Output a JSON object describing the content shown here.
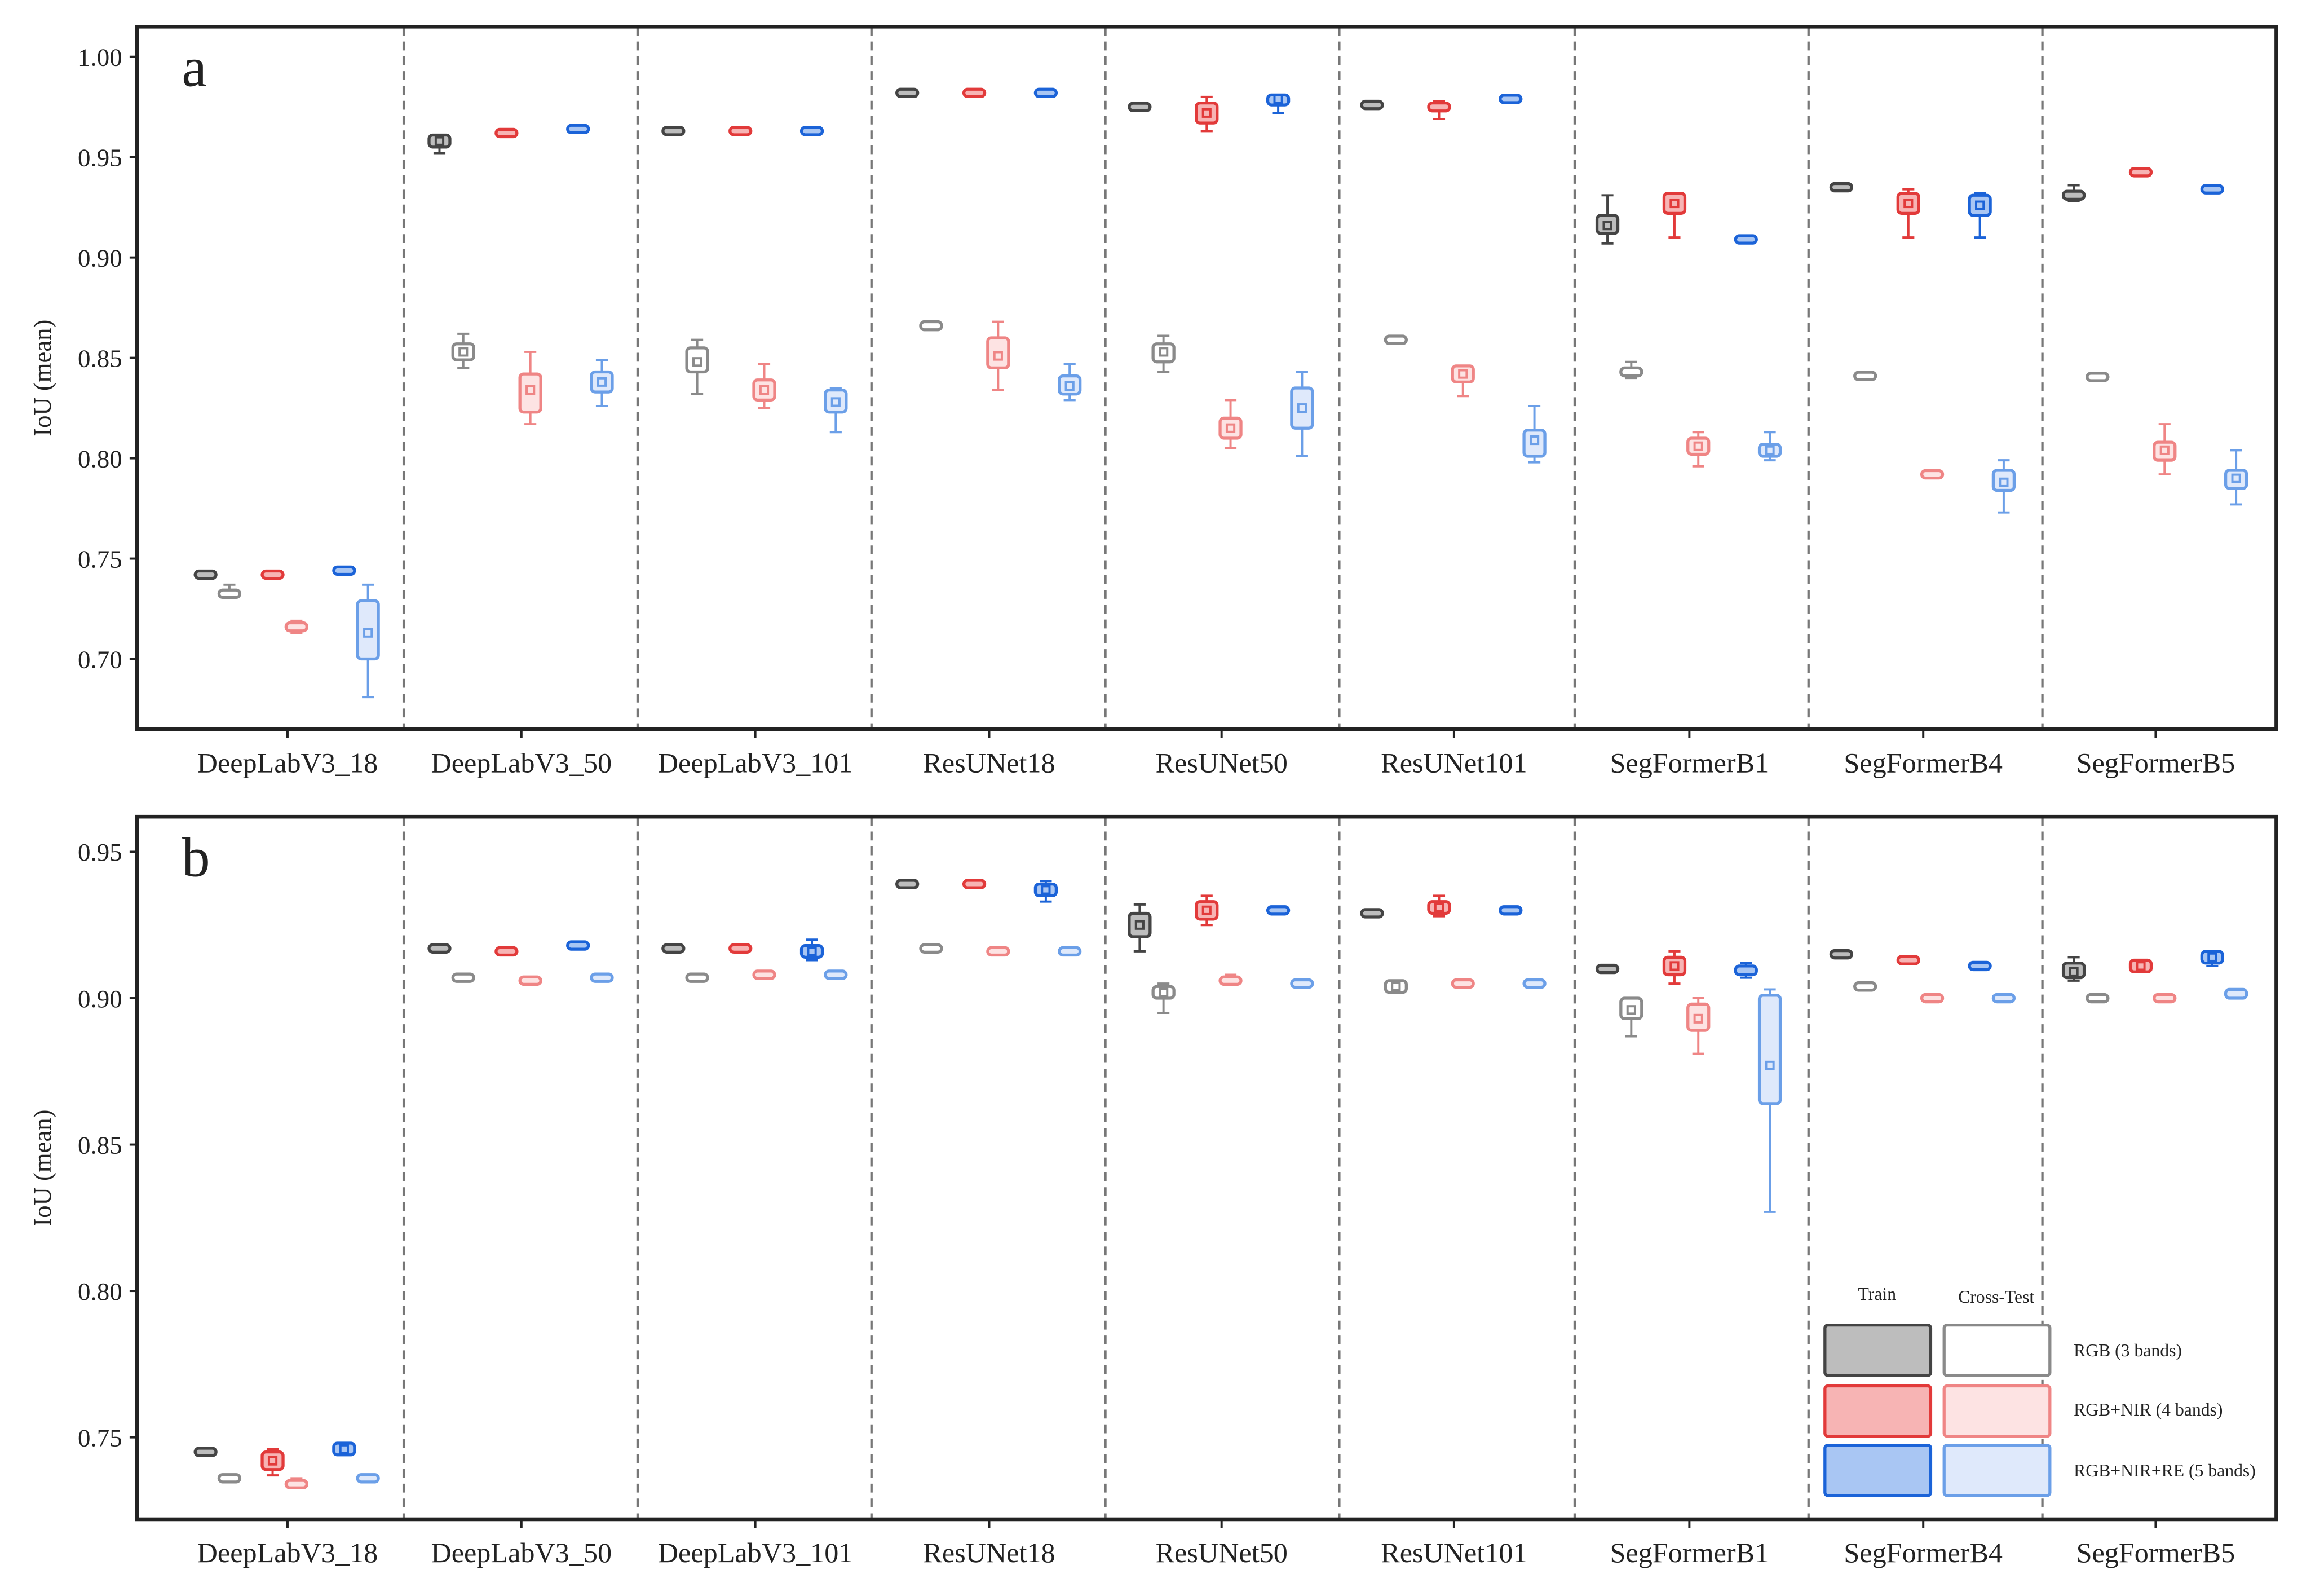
{
  "chart_data": {
    "type": "box",
    "ylabel": "IoU (mean)",
    "categories": [
      "DeepLabV3_18",
      "DeepLabV3_50",
      "DeepLabV3_101",
      "ResUNet18",
      "ResUNet50",
      "ResUNet101",
      "SegFormerB1",
      "SegFormerB4",
      "SegFormerB5"
    ],
    "series": [
      {
        "name": "RGB (3 bands) Train",
        "color": "#444444",
        "fill": "#bdbdbd"
      },
      {
        "name": "RGB (3 bands) Cross-Test",
        "color": "#8a8a8a",
        "fill": "#ffffff"
      },
      {
        "name": "RGB+NIR (4 bands) Train",
        "color": "#e23a3a",
        "fill": "#f7b4b4"
      },
      {
        "name": "RGB+NIR (4 bands) Cross-Test",
        "color": "#ef8585",
        "fill": "#fde3e3"
      },
      {
        "name": "RGB+NIR+RE (5 bands) Train",
        "color": "#1b63d8",
        "fill": "#a9c6f3"
      },
      {
        "name": "RGB+NIR+RE (5 bands) Cross-Test",
        "color": "#6b9fe8",
        "fill": "#dfe9fb"
      }
    ],
    "box_format": [
      "whisker_low",
      "q1",
      "q3",
      "whisker_high",
      "mean"
    ],
    "panels": [
      {
        "label": "a",
        "ylim": [
          0.665,
          1.015
        ],
        "yticks": [
          "0.70",
          "0.75",
          "0.80",
          "0.85",
          "0.90",
          "0.95",
          "1.00"
        ],
        "boxes": [
          [
            [
              0.74,
              0.741,
              0.743,
              0.743,
              0.742
            ],
            [
              0.731,
              0.731,
              0.734,
              0.737,
              0.733
            ],
            [
              0.74,
              0.741,
              0.743,
              0.743,
              0.742
            ],
            [
              0.713,
              0.714,
              0.718,
              0.719,
              0.716
            ],
            [
              0.742,
              0.743,
              0.745,
              0.745,
              0.744
            ],
            [
              0.681,
              0.7,
              0.729,
              0.737,
              0.713
            ]
          ],
          [
            [
              0.952,
              0.955,
              0.961,
              0.961,
              0.958
            ],
            [
              0.845,
              0.849,
              0.857,
              0.862,
              0.853
            ],
            [
              0.961,
              0.961,
              0.963,
              0.963,
              0.962
            ],
            [
              0.817,
              0.823,
              0.842,
              0.853,
              0.834
            ],
            [
              0.963,
              0.963,
              0.965,
              0.965,
              0.964
            ],
            [
              0.826,
              0.833,
              0.843,
              0.849,
              0.838
            ]
          ],
          [
            [
              0.962,
              0.962,
              0.964,
              0.964,
              0.963
            ],
            [
              0.832,
              0.843,
              0.855,
              0.859,
              0.848
            ],
            [
              0.962,
              0.962,
              0.964,
              0.964,
              0.963
            ],
            [
              0.825,
              0.829,
              0.839,
              0.847,
              0.834
            ],
            [
              0.962,
              0.962,
              0.964,
              0.964,
              0.963
            ],
            [
              0.813,
              0.823,
              0.834,
              0.835,
              0.828
            ]
          ],
          [
            [
              0.981,
              0.981,
              0.983,
              0.983,
              0.982
            ],
            [
              0.864,
              0.864,
              0.868,
              0.868,
              0.866
            ],
            [
              0.981,
              0.981,
              0.983,
              0.983,
              0.982
            ],
            [
              0.834,
              0.845,
              0.86,
              0.868,
              0.851
            ],
            [
              0.981,
              0.981,
              0.983,
              0.983,
              0.982
            ],
            [
              0.829,
              0.832,
              0.841,
              0.847,
              0.836
            ]
          ],
          [
            [
              0.974,
              0.974,
              0.976,
              0.976,
              0.975
            ],
            [
              0.843,
              0.848,
              0.857,
              0.861,
              0.853
            ],
            [
              0.963,
              0.967,
              0.977,
              0.98,
              0.972
            ],
            [
              0.805,
              0.81,
              0.82,
              0.829,
              0.815
            ],
            [
              0.972,
              0.976,
              0.981,
              0.981,
              0.979
            ],
            [
              0.801,
              0.815,
              0.835,
              0.843,
              0.825
            ]
          ],
          [
            [
              0.975,
              0.975,
              0.977,
              0.977,
              0.976
            ],
            [
              0.858,
              0.858,
              0.86,
              0.86,
              0.859
            ],
            [
              0.969,
              0.973,
              0.977,
              0.978,
              0.975
            ],
            [
              0.831,
              0.838,
              0.846,
              0.846,
              0.842
            ],
            [
              0.978,
              0.978,
              0.98,
              0.98,
              0.979
            ],
            [
              0.798,
              0.801,
              0.814,
              0.826,
              0.809
            ]
          ],
          [
            [
              0.907,
              0.912,
              0.921,
              0.931,
              0.916
            ],
            [
              0.84,
              0.841,
              0.845,
              0.848,
              0.843
            ],
            [
              0.91,
              0.922,
              0.932,
              0.932,
              0.927
            ],
            [
              0.796,
              0.802,
              0.81,
              0.813,
              0.806
            ],
            [
              0.908,
              0.908,
              0.91,
              0.91,
              0.909
            ],
            [
              0.799,
              0.801,
              0.807,
              0.813,
              0.804
            ]
          ],
          [
            [
              0.934,
              0.934,
              0.936,
              0.936,
              0.935
            ],
            [
              0.84,
              0.84,
              0.842,
              0.842,
              0.841
            ],
            [
              0.91,
              0.922,
              0.932,
              0.934,
              0.927
            ],
            [
              0.791,
              0.791,
              0.793,
              0.793,
              0.792
            ],
            [
              0.91,
              0.921,
              0.931,
              0.932,
              0.926
            ],
            [
              0.773,
              0.784,
              0.794,
              0.799,
              0.788
            ]
          ],
          [
            [
              0.928,
              0.929,
              0.933,
              0.936,
              0.931
            ],
            [
              0.839,
              0.839,
              0.842,
              0.842,
              0.84
            ],
            [
              0.941,
              0.941,
              0.944,
              0.944,
              0.942
            ],
            [
              0.792,
              0.799,
              0.808,
              0.817,
              0.804
            ],
            [
              0.933,
              0.933,
              0.935,
              0.935,
              0.934
            ],
            [
              0.777,
              0.785,
              0.794,
              0.804,
              0.79
            ]
          ]
        ]
      },
      {
        "label": "b",
        "ylim": [
          0.722,
          0.962
        ],
        "yticks": [
          "0.75",
          "0.80",
          "0.85",
          "0.90",
          "0.95"
        ],
        "boxes": [
          [
            [
              0.744,
              0.744,
              0.746,
              0.746,
              0.745
            ],
            [
              0.735,
              0.735,
              0.737,
              0.737,
              0.736
            ],
            [
              0.737,
              0.739,
              0.745,
              0.746,
              0.742
            ],
            [
              0.733,
              0.733,
              0.735,
              0.736,
              0.734
            ],
            [
              0.744,
              0.744,
              0.748,
              0.748,
              0.746
            ],
            [
              0.735,
              0.735,
              0.737,
              0.737,
              0.736
            ]
          ],
          [
            [
              0.916,
              0.916,
              0.918,
              0.918,
              0.917
            ],
            [
              0.906,
              0.906,
              0.908,
              0.908,
              0.907
            ],
            [
              0.915,
              0.915,
              0.917,
              0.917,
              0.916
            ],
            [
              0.905,
              0.905,
              0.907,
              0.907,
              0.906
            ],
            [
              0.917,
              0.917,
              0.919,
              0.919,
              0.918
            ],
            [
              0.906,
              0.906,
              0.908,
              0.908,
              0.907
            ]
          ],
          [
            [
              0.916,
              0.916,
              0.918,
              0.918,
              0.917
            ],
            [
              0.906,
              0.906,
              0.908,
              0.908,
              0.907
            ],
            [
              0.916,
              0.916,
              0.918,
              0.918,
              0.917
            ],
            [
              0.907,
              0.907,
              0.909,
              0.909,
              0.908
            ],
            [
              0.913,
              0.914,
              0.918,
              0.92,
              0.916
            ],
            [
              0.907,
              0.907,
              0.909,
              0.909,
              0.908
            ]
          ],
          [
            [
              0.938,
              0.938,
              0.94,
              0.94,
              0.939
            ],
            [
              0.916,
              0.916,
              0.918,
              0.918,
              0.917
            ],
            [
              0.938,
              0.938,
              0.94,
              0.94,
              0.939
            ],
            [
              0.915,
              0.915,
              0.917,
              0.917,
              0.916
            ],
            [
              0.933,
              0.935,
              0.939,
              0.94,
              0.937
            ],
            [
              0.915,
              0.915,
              0.917,
              0.917,
              0.916
            ]
          ],
          [
            [
              0.916,
              0.921,
              0.929,
              0.932,
              0.925
            ],
            [
              0.895,
              0.9,
              0.904,
              0.905,
              0.902
            ],
            [
              0.925,
              0.927,
              0.933,
              0.935,
              0.93
            ],
            [
              0.905,
              0.905,
              0.907,
              0.908,
              0.906
            ],
            [
              0.929,
              0.929,
              0.931,
              0.931,
              0.93
            ],
            [
              0.904,
              0.904,
              0.906,
              0.906,
              0.905
            ]
          ],
          [
            [
              0.928,
              0.928,
              0.93,
              0.93,
              0.929
            ],
            [
              0.902,
              0.902,
              0.906,
              0.906,
              0.904
            ],
            [
              0.928,
              0.929,
              0.933,
              0.935,
              0.931
            ],
            [
              0.904,
              0.904,
              0.906,
              0.906,
              0.905
            ],
            [
              0.929,
              0.929,
              0.931,
              0.931,
              0.93
            ],
            [
              0.904,
              0.904,
              0.906,
              0.906,
              0.905
            ]
          ],
          [
            [
              0.909,
              0.909,
              0.911,
              0.911,
              0.91
            ],
            [
              0.887,
              0.893,
              0.9,
              0.9,
              0.896
            ],
            [
              0.905,
              0.908,
              0.914,
              0.916,
              0.911
            ],
            [
              0.881,
              0.889,
              0.898,
              0.9,
              0.893
            ],
            [
              0.907,
              0.908,
              0.911,
              0.912,
              0.909
            ],
            [
              0.827,
              0.864,
              0.901,
              0.903,
              0.877
            ]
          ],
          [
            [
              0.914,
              0.914,
              0.916,
              0.916,
              0.915
            ],
            [
              0.903,
              0.903,
              0.905,
              0.905,
              0.904
            ],
            [
              0.912,
              0.912,
              0.914,
              0.914,
              0.913
            ],
            [
              0.899,
              0.899,
              0.901,
              0.901,
              0.9
            ],
            [
              0.91,
              0.91,
              0.912,
              0.912,
              0.911
            ],
            [
              0.899,
              0.899,
              0.901,
              0.901,
              0.9
            ]
          ],
          [
            [
              0.906,
              0.907,
              0.912,
              0.914,
              0.909
            ],
            [
              0.899,
              0.899,
              0.901,
              0.901,
              0.9
            ],
            [
              0.909,
              0.909,
              0.913,
              0.913,
              0.911
            ],
            [
              0.899,
              0.899,
              0.901,
              0.901,
              0.9
            ],
            [
              0.911,
              0.912,
              0.916,
              0.916,
              0.914
            ],
            [
              0.9,
              0.9,
              0.903,
              0.903,
              0.902
            ]
          ]
        ]
      }
    ],
    "legend": {
      "placement": "bottom-right of panel b",
      "column_headers": [
        "Train",
        "Cross-Test"
      ],
      "rows": [
        "RGB (3 bands)",
        "RGB+NIR (4 bands)",
        "RGB+NIR+RE (5 bands)"
      ]
    }
  }
}
